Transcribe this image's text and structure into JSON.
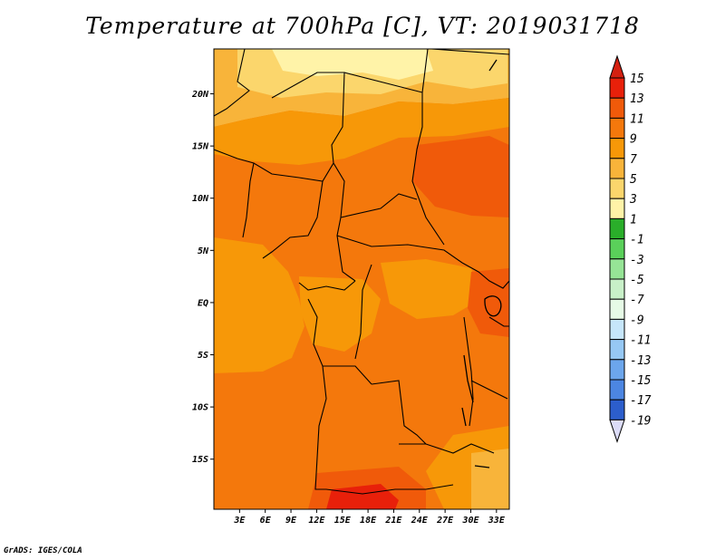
{
  "title": "Temperature at 700hPa [C], VT: 2019031718",
  "footer": "GrADS: IGES/COLA",
  "map": {
    "variable": "Temperature at 700hPa",
    "units": "C",
    "valid_time": "2019031718",
    "lon_range": [
      0,
      34.5
    ],
    "lat_range": [
      -19.8,
      24.3
    ],
    "lat_ticks": [
      {
        "value": 20,
        "label": "20N"
      },
      {
        "value": 15,
        "label": "15N"
      },
      {
        "value": 10,
        "label": "10N"
      },
      {
        "value": 5,
        "label": "5N"
      },
      {
        "value": 0,
        "label": "EQ"
      },
      {
        "value": -5,
        "label": "5S"
      },
      {
        "value": -10,
        "label": "10S"
      },
      {
        "value": -15,
        "label": "15S"
      }
    ],
    "lon_ticks": [
      {
        "value": 3,
        "label": "3E"
      },
      {
        "value": 6,
        "label": "6E"
      },
      {
        "value": 9,
        "label": "9E"
      },
      {
        "value": 12,
        "label": "12E"
      },
      {
        "value": 15,
        "label": "15E"
      },
      {
        "value": 18,
        "label": "18E"
      },
      {
        "value": 21,
        "label": "21E"
      },
      {
        "value": 24,
        "label": "24E"
      },
      {
        "value": 27,
        "label": "27E"
      },
      {
        "value": 30,
        "label": "30E"
      },
      {
        "value": 33,
        "label": "33E"
      }
    ]
  },
  "colorbar": {
    "levels": [
      "15",
      "13",
      "11",
      "9",
      "7",
      "5",
      "3",
      "1",
      "-1",
      "-3",
      "-5",
      "-7",
      "-9",
      "-11",
      "-13",
      "-15",
      "-17",
      "-19"
    ],
    "colors": [
      "#e8200a",
      "#f05a0a",
      "#f4780c",
      "#f79808",
      "#f8b43a",
      "#fbd66c",
      "#fff3a8",
      "#2aae2a",
      "#5ad05a",
      "#96e496",
      "#c8f0c8",
      "#e6fae6",
      "#c6e6fa",
      "#96c8f4",
      "#6ca6ec",
      "#4c86e2",
      "#2c5ecc",
      "#1a3cb4",
      "#0c1c78",
      "#dcdcf8"
    ],
    "top_color": "#d42010",
    "bottom_color": "#dcdcf8"
  }
}
